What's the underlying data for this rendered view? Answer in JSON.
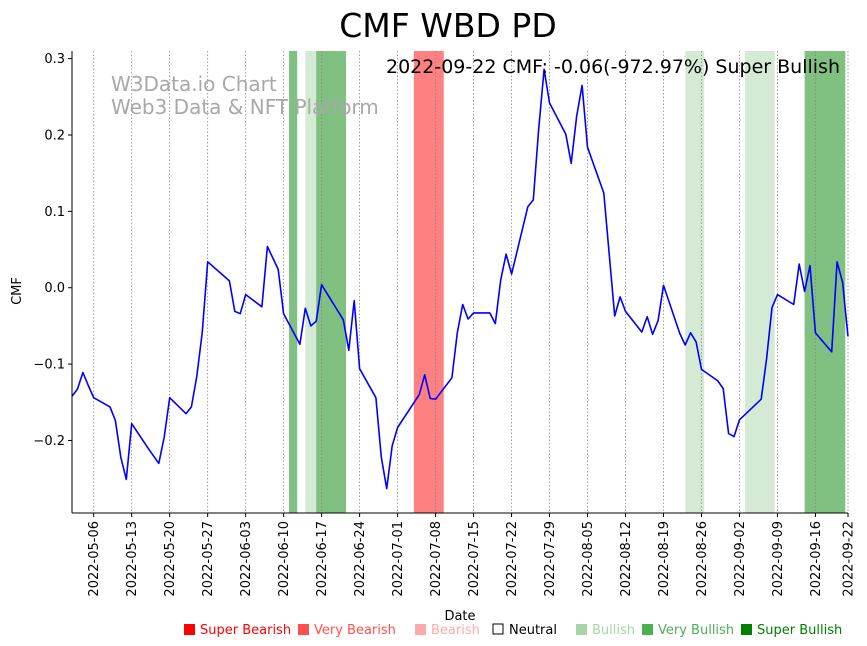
{
  "chart_data": {
    "type": "line",
    "title": "CMF WBD PD",
    "xlabel": "Date",
    "ylabel": "CMF",
    "ylim": [
      -0.295,
      0.31
    ],
    "xlim": [
      "2022-05-02",
      "2022-09-22"
    ],
    "yticks": [
      -0.2,
      -0.1,
      0.0,
      0.1,
      0.2,
      0.3
    ],
    "ytick_labels": [
      "−0.2",
      "−0.1",
      "0.0",
      "0.1",
      "0.2",
      "0.3"
    ],
    "xticks": [
      "2022-05-06",
      "2022-05-13",
      "2022-05-20",
      "2022-05-27",
      "2022-06-03",
      "2022-06-10",
      "2022-06-17",
      "2022-06-24",
      "2022-07-01",
      "2022-07-08",
      "2022-07-15",
      "2022-07-22",
      "2022-07-29",
      "2022-08-05",
      "2022-08-12",
      "2022-08-19",
      "2022-08-26",
      "2022-09-02",
      "2022-09-09",
      "2022-09-16",
      "2022-09-22"
    ],
    "grid": "vertical-dotted",
    "series": [
      {
        "name": "CMF",
        "color": "#0000ff",
        "x": [
          "2022-05-02",
          "2022-05-03",
          "2022-05-04",
          "2022-05-05",
          "2022-05-06",
          "2022-05-09",
          "2022-05-10",
          "2022-05-11",
          "2022-05-12",
          "2022-05-13",
          "2022-05-16",
          "2022-05-18",
          "2022-05-19",
          "2022-05-20",
          "2022-05-23",
          "2022-05-24",
          "2022-05-25",
          "2022-05-26",
          "2022-05-27",
          "2022-05-31",
          "2022-06-01",
          "2022-06-02",
          "2022-06-03",
          "2022-06-06",
          "2022-06-07",
          "2022-06-09",
          "2022-06-10",
          "2022-06-13",
          "2022-06-14",
          "2022-06-15",
          "2022-06-16",
          "2022-06-17",
          "2022-06-21",
          "2022-06-22",
          "2022-06-23",
          "2022-06-24",
          "2022-06-27",
          "2022-06-28",
          "2022-06-29",
          "2022-06-30",
          "2022-07-01",
          "2022-07-05",
          "2022-07-06",
          "2022-07-07",
          "2022-07-08",
          "2022-07-11",
          "2022-07-12",
          "2022-07-13",
          "2022-07-14",
          "2022-07-15",
          "2022-07-18",
          "2022-07-19",
          "2022-07-20",
          "2022-07-21",
          "2022-07-22",
          "2022-07-25",
          "2022-07-26",
          "2022-07-27",
          "2022-07-28",
          "2022-07-29",
          "2022-08-01",
          "2022-08-02",
          "2022-08-03",
          "2022-08-04",
          "2022-08-05",
          "2022-08-08",
          "2022-08-10",
          "2022-08-11",
          "2022-08-12",
          "2022-08-15",
          "2022-08-16",
          "2022-08-17",
          "2022-08-18",
          "2022-08-19",
          "2022-08-22",
          "2022-08-23",
          "2022-08-24",
          "2022-08-25",
          "2022-08-26",
          "2022-08-29",
          "2022-08-30",
          "2022-08-31",
          "2022-09-01",
          "2022-09-02",
          "2022-09-06",
          "2022-09-07",
          "2022-09-08",
          "2022-09-09",
          "2022-09-12",
          "2022-09-13",
          "2022-09-14",
          "2022-09-15",
          "2022-09-16",
          "2022-09-19",
          "2022-09-20",
          "2022-09-21",
          "2022-09-22"
        ],
        "values": [
          -0.142,
          -0.133,
          -0.111,
          -0.128,
          -0.144,
          -0.156,
          -0.174,
          -0.222,
          -0.251,
          -0.178,
          -0.21,
          -0.23,
          -0.195,
          -0.144,
          -0.165,
          -0.156,
          -0.116,
          -0.059,
          0.034,
          0.009,
          -0.031,
          -0.034,
          -0.009,
          -0.025,
          0.054,
          0.024,
          -0.034,
          -0.074,
          -0.027,
          -0.05,
          -0.044,
          0.004,
          -0.042,
          -0.082,
          -0.017,
          -0.106,
          -0.144,
          -0.222,
          -0.263,
          -0.207,
          -0.183,
          -0.14,
          -0.114,
          -0.145,
          -0.146,
          -0.118,
          -0.059,
          -0.022,
          -0.041,
          -0.033,
          -0.033,
          -0.047,
          0.01,
          0.044,
          0.018,
          0.106,
          0.115,
          0.208,
          0.286,
          0.242,
          0.201,
          0.163,
          0.225,
          0.265,
          0.184,
          0.124,
          -0.037,
          -0.012,
          -0.031,
          -0.058,
          -0.038,
          -0.061,
          -0.043,
          0.003,
          -0.06,
          -0.075,
          -0.059,
          -0.071,
          -0.107,
          -0.122,
          -0.132,
          -0.191,
          -0.195,
          -0.173,
          -0.146,
          -0.093,
          -0.026,
          -0.009,
          -0.022,
          0.031,
          -0.005,
          0.029,
          -0.059,
          -0.084,
          0.034,
          0.007,
          -0.064
        ]
      }
    ],
    "bands": [
      {
        "start": "2022-06-11",
        "end": "2022-06-12",
        "sentiment": "Very Bullish"
      },
      {
        "start": "2022-06-14",
        "end": "2022-06-16",
        "sentiment": "Bullish"
      },
      {
        "start": "2022-06-16",
        "end": "2022-06-21",
        "sentiment": "Very Bullish"
      },
      {
        "start": "2022-07-04",
        "end": "2022-07-09",
        "sentiment": "Very Bearish"
      },
      {
        "start": "2022-08-23",
        "end": "2022-08-26",
        "sentiment": "Bullish"
      },
      {
        "start": "2022-09-03",
        "end": "2022-09-08",
        "sentiment": "Bullish"
      },
      {
        "start": "2022-09-14",
        "end": "2022-09-21",
        "sentiment": "Very Bullish"
      }
    ],
    "annotation": "2022-09-22 CMF: -0.06(-972.97%) Super Bullish",
    "watermark": [
      "W3Data.io Chart",
      "Web3 Data & NFT Platform"
    ],
    "legend_position": "bottom",
    "legend": [
      {
        "label": "Super Bearish",
        "color": "#ff0000",
        "marker": "filled"
      },
      {
        "label": "Very Bearish",
        "color": "#ff5050",
        "marker": "filled"
      },
      {
        "label": "Bearish",
        "color": "#ffaaaa",
        "marker": "filled"
      },
      {
        "label": "Neutral",
        "color": "#000000",
        "marker": "hollow"
      },
      {
        "label": "Bullish",
        "color": "#a8d5a8",
        "marker": "filled"
      },
      {
        "label": "Very Bullish",
        "color": "#4caf50",
        "marker": "filled"
      },
      {
        "label": "Super Bullish",
        "color": "#008000",
        "marker": "filled"
      }
    ],
    "band_colors": {
      "Super Bearish": "#ff0000",
      "Very Bearish": "#ff8080",
      "Bearish": "#ffc0c0",
      "Bullish": "#d4ead4",
      "Very Bullish": "#80c080",
      "Super Bullish": "#008000"
    }
  }
}
